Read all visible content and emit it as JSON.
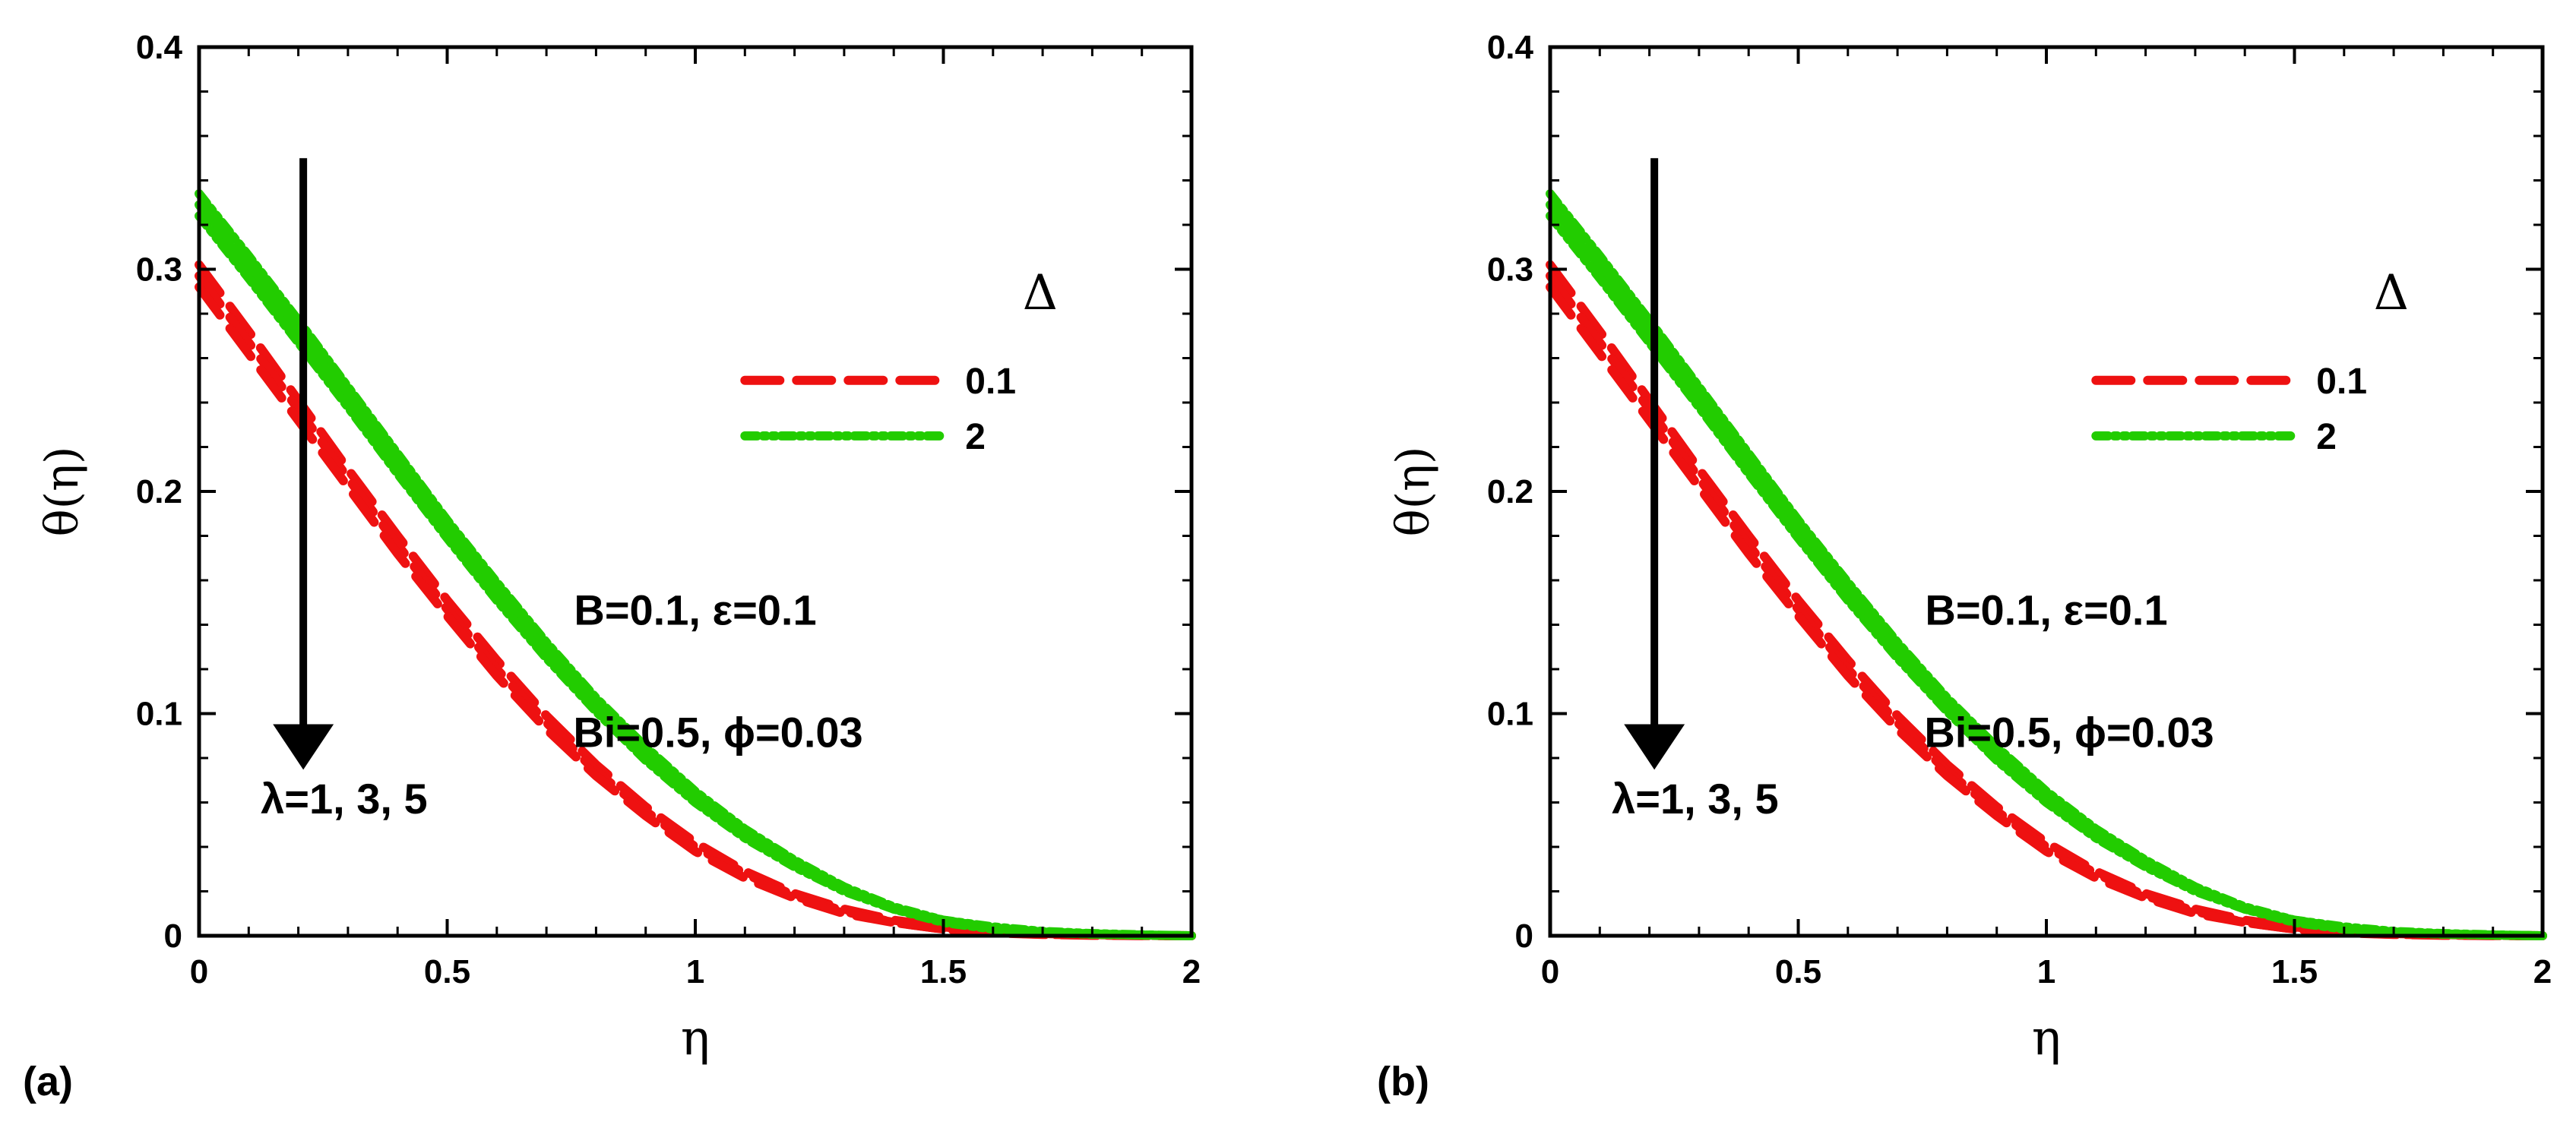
{
  "colors": {
    "red": "#ee1111",
    "green": "#22cc00",
    "axis": "#000000"
  },
  "chart_data": [
    {
      "panel": "(a)",
      "type": "line",
      "xlabel": "η",
      "ylabel": "θ(η)",
      "xlim": [
        0,
        2
      ],
      "ylim": [
        0,
        0.4
      ],
      "xticks": [
        "0",
        "0.5",
        "1",
        "1.5",
        "2"
      ],
      "yticks": [
        "0",
        "0.1",
        "0.2",
        "0.3",
        "0.4"
      ],
      "legend": {
        "title": "Δ",
        "entries": [
          {
            "label": "0.1",
            "color": "#ee1111",
            "style": "dashed"
          },
          {
            "label": "2",
            "color": "#22cc00",
            "style": "dashdot"
          }
        ]
      },
      "annotations": {
        "line1": "B=0.1, ε=0.1",
        "line2": "Bi=0.5, ϕ=0.03",
        "arrow_label": "λ=1, 3, 5"
      },
      "x": [
        0,
        0.1,
        0.2,
        0.3,
        0.4,
        0.5,
        0.6,
        0.7,
        0.8,
        0.9,
        1.0,
        1.1,
        1.2,
        1.3,
        1.4,
        1.5,
        1.6,
        1.7,
        1.8,
        1.9,
        2.0
      ],
      "series": [
        {
          "name": "Δ=0.1, λ=1",
          "group": "0.1",
          "values": [
            0.302,
            0.272,
            0.241,
            0.21,
            0.18,
            0.151,
            0.124,
            0.099,
            0.077,
            0.058,
            0.042,
            0.029,
            0.019,
            0.012,
            0.007,
            0.004,
            0.002,
            0.001,
            0.0005,
            0.0002,
            0.0
          ]
        },
        {
          "name": "Δ=0.1, λ=3",
          "group": "0.1",
          "values": [
            0.297,
            0.267,
            0.237,
            0.206,
            0.176,
            0.147,
            0.12,
            0.096,
            0.074,
            0.056,
            0.04,
            0.028,
            0.018,
            0.011,
            0.006,
            0.003,
            0.0015,
            0.0007,
            0.0003,
            0.0001,
            0.0
          ]
        },
        {
          "name": "Δ=0.1, λ=5",
          "group": "0.1",
          "values": [
            0.292,
            0.262,
            0.232,
            0.202,
            0.172,
            0.144,
            0.117,
            0.093,
            0.072,
            0.054,
            0.038,
            0.026,
            0.017,
            0.01,
            0.006,
            0.003,
            0.0013,
            0.0006,
            0.0002,
            0.0001,
            0.0
          ]
        },
        {
          "name": "Δ=2, λ=1",
          "group": "2",
          "values": [
            0.334,
            0.306,
            0.277,
            0.247,
            0.217,
            0.187,
            0.159,
            0.132,
            0.107,
            0.085,
            0.065,
            0.048,
            0.034,
            0.022,
            0.013,
            0.007,
            0.004,
            0.002,
            0.001,
            0.0004,
            0.0
          ]
        },
        {
          "name": "Δ=2, λ=3",
          "group": "2",
          "values": [
            0.329,
            0.301,
            0.272,
            0.242,
            0.212,
            0.183,
            0.155,
            0.128,
            0.104,
            0.082,
            0.062,
            0.046,
            0.032,
            0.021,
            0.012,
            0.007,
            0.0035,
            0.0017,
            0.0008,
            0.0003,
            0.0
          ]
        },
        {
          "name": "Δ=2, λ=5",
          "group": "2",
          "values": [
            0.324,
            0.296,
            0.267,
            0.238,
            0.208,
            0.179,
            0.151,
            0.125,
            0.101,
            0.079,
            0.06,
            0.044,
            0.031,
            0.02,
            0.012,
            0.006,
            0.003,
            0.0015,
            0.0007,
            0.0003,
            0.0
          ]
        }
      ],
      "arrow": {
        "x": 0.21,
        "y_from": 0.35,
        "y_to": 0.085
      }
    },
    {
      "panel": "(b)",
      "type": "line",
      "xlabel": "η",
      "ylabel": "θ(η)",
      "xlim": [
        0,
        2
      ],
      "ylim": [
        0,
        0.4
      ],
      "xticks": [
        "0",
        "0.5",
        "1",
        "1.5",
        "2"
      ],
      "yticks": [
        "0",
        "0.1",
        "0.2",
        "0.3",
        "0.4"
      ],
      "legend": {
        "title": "Δ",
        "entries": [
          {
            "label": "0.1",
            "color": "#ee1111",
            "style": "dashed"
          },
          {
            "label": "2",
            "color": "#22cc00",
            "style": "dashdot"
          }
        ]
      },
      "annotations": {
        "line1": "B=0.1, ε=0.1",
        "line2": "Bi=0.5, ϕ=0.03",
        "arrow_label": "λ=1, 3, 5"
      },
      "x": [
        0,
        0.1,
        0.2,
        0.3,
        0.4,
        0.5,
        0.6,
        0.7,
        0.8,
        0.9,
        1.0,
        1.1,
        1.2,
        1.3,
        1.4,
        1.5,
        1.6,
        1.7,
        1.8,
        1.9,
        2.0
      ],
      "series": [
        {
          "name": "Δ=0.1, λ=1",
          "group": "0.1",
          "values": [
            0.302,
            0.272,
            0.241,
            0.21,
            0.18,
            0.151,
            0.124,
            0.099,
            0.077,
            0.058,
            0.042,
            0.029,
            0.019,
            0.012,
            0.007,
            0.004,
            0.002,
            0.001,
            0.0005,
            0.0002,
            0.0
          ]
        },
        {
          "name": "Δ=0.1, λ=3",
          "group": "0.1",
          "values": [
            0.297,
            0.267,
            0.237,
            0.206,
            0.176,
            0.147,
            0.12,
            0.096,
            0.074,
            0.056,
            0.04,
            0.028,
            0.018,
            0.011,
            0.006,
            0.003,
            0.0015,
            0.0007,
            0.0003,
            0.0001,
            0.0
          ]
        },
        {
          "name": "Δ=0.1, λ=5",
          "group": "0.1",
          "values": [
            0.292,
            0.262,
            0.232,
            0.202,
            0.172,
            0.144,
            0.117,
            0.093,
            0.072,
            0.054,
            0.038,
            0.026,
            0.017,
            0.01,
            0.006,
            0.003,
            0.0013,
            0.0006,
            0.0002,
            0.0001,
            0.0
          ]
        },
        {
          "name": "Δ=2, λ=1",
          "group": "2",
          "values": [
            0.334,
            0.306,
            0.277,
            0.247,
            0.217,
            0.187,
            0.159,
            0.132,
            0.107,
            0.085,
            0.065,
            0.048,
            0.034,
            0.022,
            0.013,
            0.007,
            0.004,
            0.002,
            0.001,
            0.0004,
            0.0
          ]
        },
        {
          "name": "Δ=2, λ=3",
          "group": "2",
          "values": [
            0.329,
            0.301,
            0.272,
            0.242,
            0.212,
            0.183,
            0.155,
            0.128,
            0.104,
            0.082,
            0.062,
            0.046,
            0.032,
            0.021,
            0.012,
            0.007,
            0.0035,
            0.0017,
            0.0008,
            0.0003,
            0.0
          ]
        },
        {
          "name": "Δ=2, λ=5",
          "group": "2",
          "values": [
            0.324,
            0.296,
            0.267,
            0.238,
            0.208,
            0.179,
            0.151,
            0.125,
            0.101,
            0.079,
            0.06,
            0.044,
            0.031,
            0.02,
            0.012,
            0.006,
            0.003,
            0.0015,
            0.0007,
            0.0003,
            0.0
          ]
        }
      ],
      "arrow": {
        "x": 0.21,
        "y_from": 0.35,
        "y_to": 0.085
      }
    }
  ]
}
